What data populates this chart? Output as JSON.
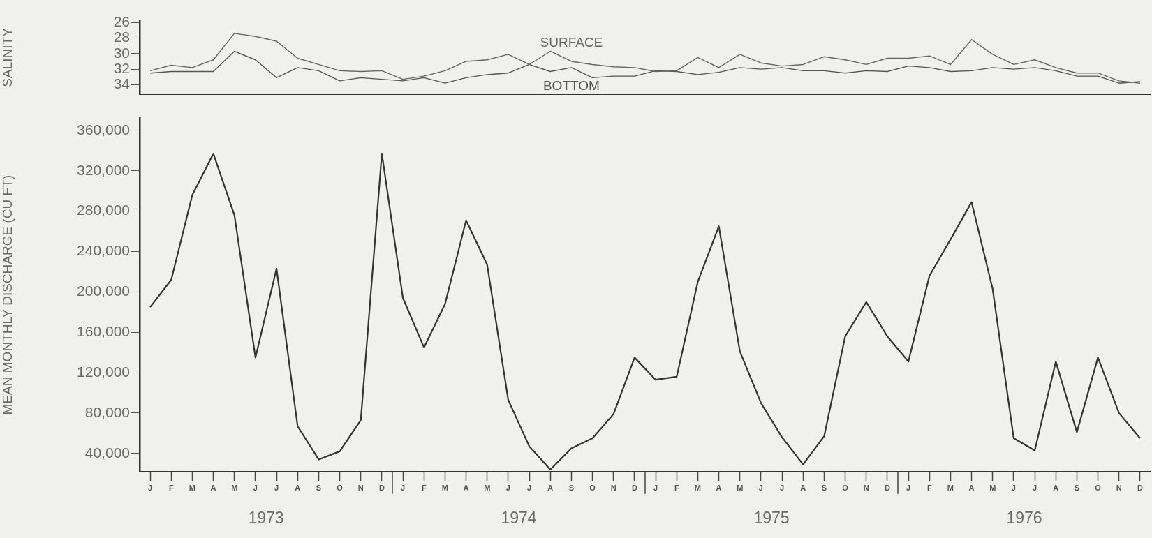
{
  "chart_data": [
    {
      "type": "line",
      "ylabel": "SALINITY",
      "marker": "none",
      "line_style": "solid",
      "categories": [
        null,
        null,
        null,
        null,
        null,
        null,
        null,
        null,
        null,
        null,
        null,
        null,
        null,
        null,
        null,
        null,
        null,
        null,
        null,
        null,
        null,
        null,
        null,
        null,
        null,
        null,
        null,
        null,
        null,
        null,
        null,
        null,
        null,
        null,
        null,
        null,
        null,
        null,
        null,
        null,
        null,
        null,
        null,
        null,
        null,
        null,
        null,
        null
      ],
      "ylim": [
        35.2,
        25.8
      ],
      "yticks": [
        26,
        28,
        30,
        32,
        34
      ],
      "series": [
        {
          "name": "SURFACE",
          "color": "#666666",
          "values": [
            32.2,
            31.5,
            31.8,
            30.8,
            27.4,
            27.8,
            28.4,
            30.6,
            31.4,
            32.2,
            32.3,
            32.2,
            33.3,
            32.9,
            32.2,
            31.0,
            30.8,
            30.1,
            31.4,
            29.7,
            31.0,
            31.4,
            31.7,
            31.8,
            32.3,
            32.2,
            30.5,
            31.8,
            30.1,
            31.2,
            31.6,
            31.4,
            30.4,
            30.8,
            31.4,
            30.6,
            30.6,
            30.3,
            31.4,
            28.2,
            30.1,
            31.4,
            30.8,
            31.8,
            32.5,
            32.5,
            33.5,
            33.8
          ]
        },
        {
          "name": "BOTTOM",
          "color": "#555555",
          "values": [
            32.5,
            32.3,
            32.3,
            32.3,
            29.7,
            30.8,
            33.1,
            31.8,
            32.2,
            33.5,
            33.1,
            33.3,
            33.5,
            33.1,
            33.8,
            33.1,
            32.7,
            32.5,
            31.4,
            32.3,
            31.8,
            33.1,
            32.9,
            32.9,
            32.2,
            32.3,
            32.7,
            32.4,
            31.8,
            32.0,
            31.8,
            32.2,
            32.2,
            32.5,
            32.2,
            32.3,
            31.6,
            31.8,
            32.3,
            32.2,
            31.8,
            32.0,
            31.8,
            32.2,
            32.9,
            32.9,
            33.8,
            33.6
          ]
        }
      ]
    },
    {
      "type": "line",
      "ylabel": "MEAN MONTHLY DISCHARGE (CU FT)",
      "marker": "none",
      "line_style": "solid",
      "categories": [
        "J",
        "F",
        "M",
        "A",
        "M",
        "J",
        "J",
        "A",
        "S",
        "O",
        "N",
        "D",
        "J",
        "F",
        "M",
        "A",
        "M",
        "J",
        "J",
        "A",
        "S",
        "O",
        "N",
        "D",
        "J",
        "F",
        "M",
        "A",
        "M",
        "J",
        "J",
        "A",
        "S",
        "O",
        "N",
        "D",
        "J",
        "F",
        "M",
        "A",
        "M",
        "J",
        "J",
        "A",
        "S",
        "O",
        "N",
        "D"
      ],
      "ylim": [
        22000,
        372000
      ],
      "yticks": [
        {
          "value": 40000,
          "label": "40,000"
        },
        {
          "value": 80000,
          "label": "80,000"
        },
        {
          "value": 120000,
          "label": "120,000"
        },
        {
          "value": 160000,
          "label": "160,000"
        },
        {
          "value": 200000,
          "label": "200,000"
        },
        {
          "value": 240000,
          "label": "240,000"
        },
        {
          "value": 280000,
          "label": "280,000"
        },
        {
          "value": 320000,
          "label": "320,000"
        },
        {
          "value": 360000,
          "label": "360,000"
        }
      ],
      "series": [
        {
          "color": "#333333",
          "values": [
            185000,
            212000,
            296000,
            337000,
            276000,
            135000,
            223000,
            67000,
            34000,
            42000,
            73000,
            337000,
            194000,
            145000,
            188000,
            271000,
            227000,
            93000,
            47000,
            24000,
            45000,
            55000,
            79000,
            135000,
            113000,
            116000,
            210000,
            265000,
            141000,
            90000,
            56000,
            29000,
            57000,
            156000,
            190000,
            156000,
            131000,
            216000,
            252000,
            289000,
            203000,
            55000,
            43000,
            131000,
            61000,
            135000,
            80000,
            55000
          ]
        }
      ],
      "annotations": [
        "1973",
        "1974",
        "1975",
        "1976"
      ]
    }
  ]
}
